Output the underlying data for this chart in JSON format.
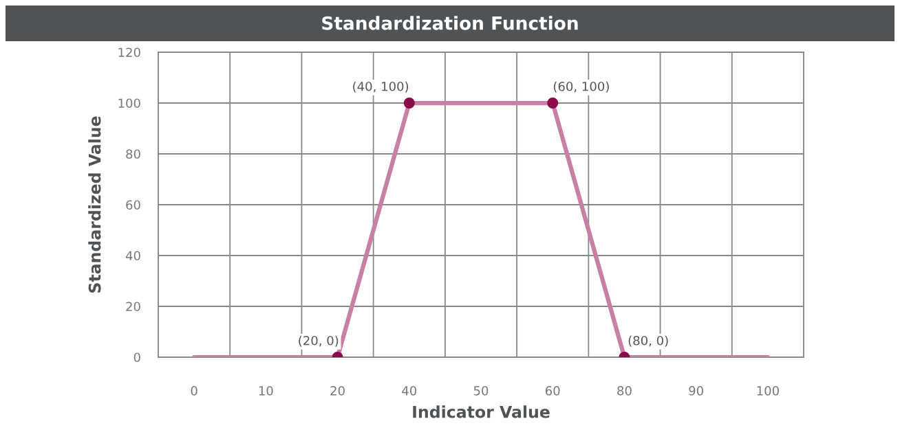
{
  "chart_data": {
    "type": "line",
    "title": "Standardization Function",
    "xlabel": "Indicator Value",
    "ylabel": "Standardized Value",
    "categories": [
      "0",
      "10",
      "20",
      "40",
      "50",
      "60",
      "80",
      "90",
      "100"
    ],
    "series": [
      {
        "color": "#c77fa6",
        "values": [
          0,
          0,
          0,
          100,
          100,
          100,
          0,
          0,
          0
        ],
        "marker": "none"
      },
      {
        "type": "scatter",
        "color": "#8b0a4a",
        "x": [
          "20",
          "40",
          "60",
          "80"
        ],
        "values": [
          0,
          100,
          100,
          0
        ],
        "marker": "circle"
      }
    ],
    "annotations": [
      {
        "text": "(20, 0)",
        "x": "20",
        "y": 0
      },
      {
        "text": "(40, 100)",
        "x": "40",
        "y": 100
      },
      {
        "text": "(60, 100)",
        "x": "60",
        "y": 100
      },
      {
        "text": "(80, 0)",
        "x": "80",
        "y": 0
      }
    ],
    "ylim": [
      0,
      120
    ],
    "yticks": [
      0,
      20,
      40,
      60,
      80,
      100,
      120
    ],
    "grid": true,
    "legend": false
  }
}
